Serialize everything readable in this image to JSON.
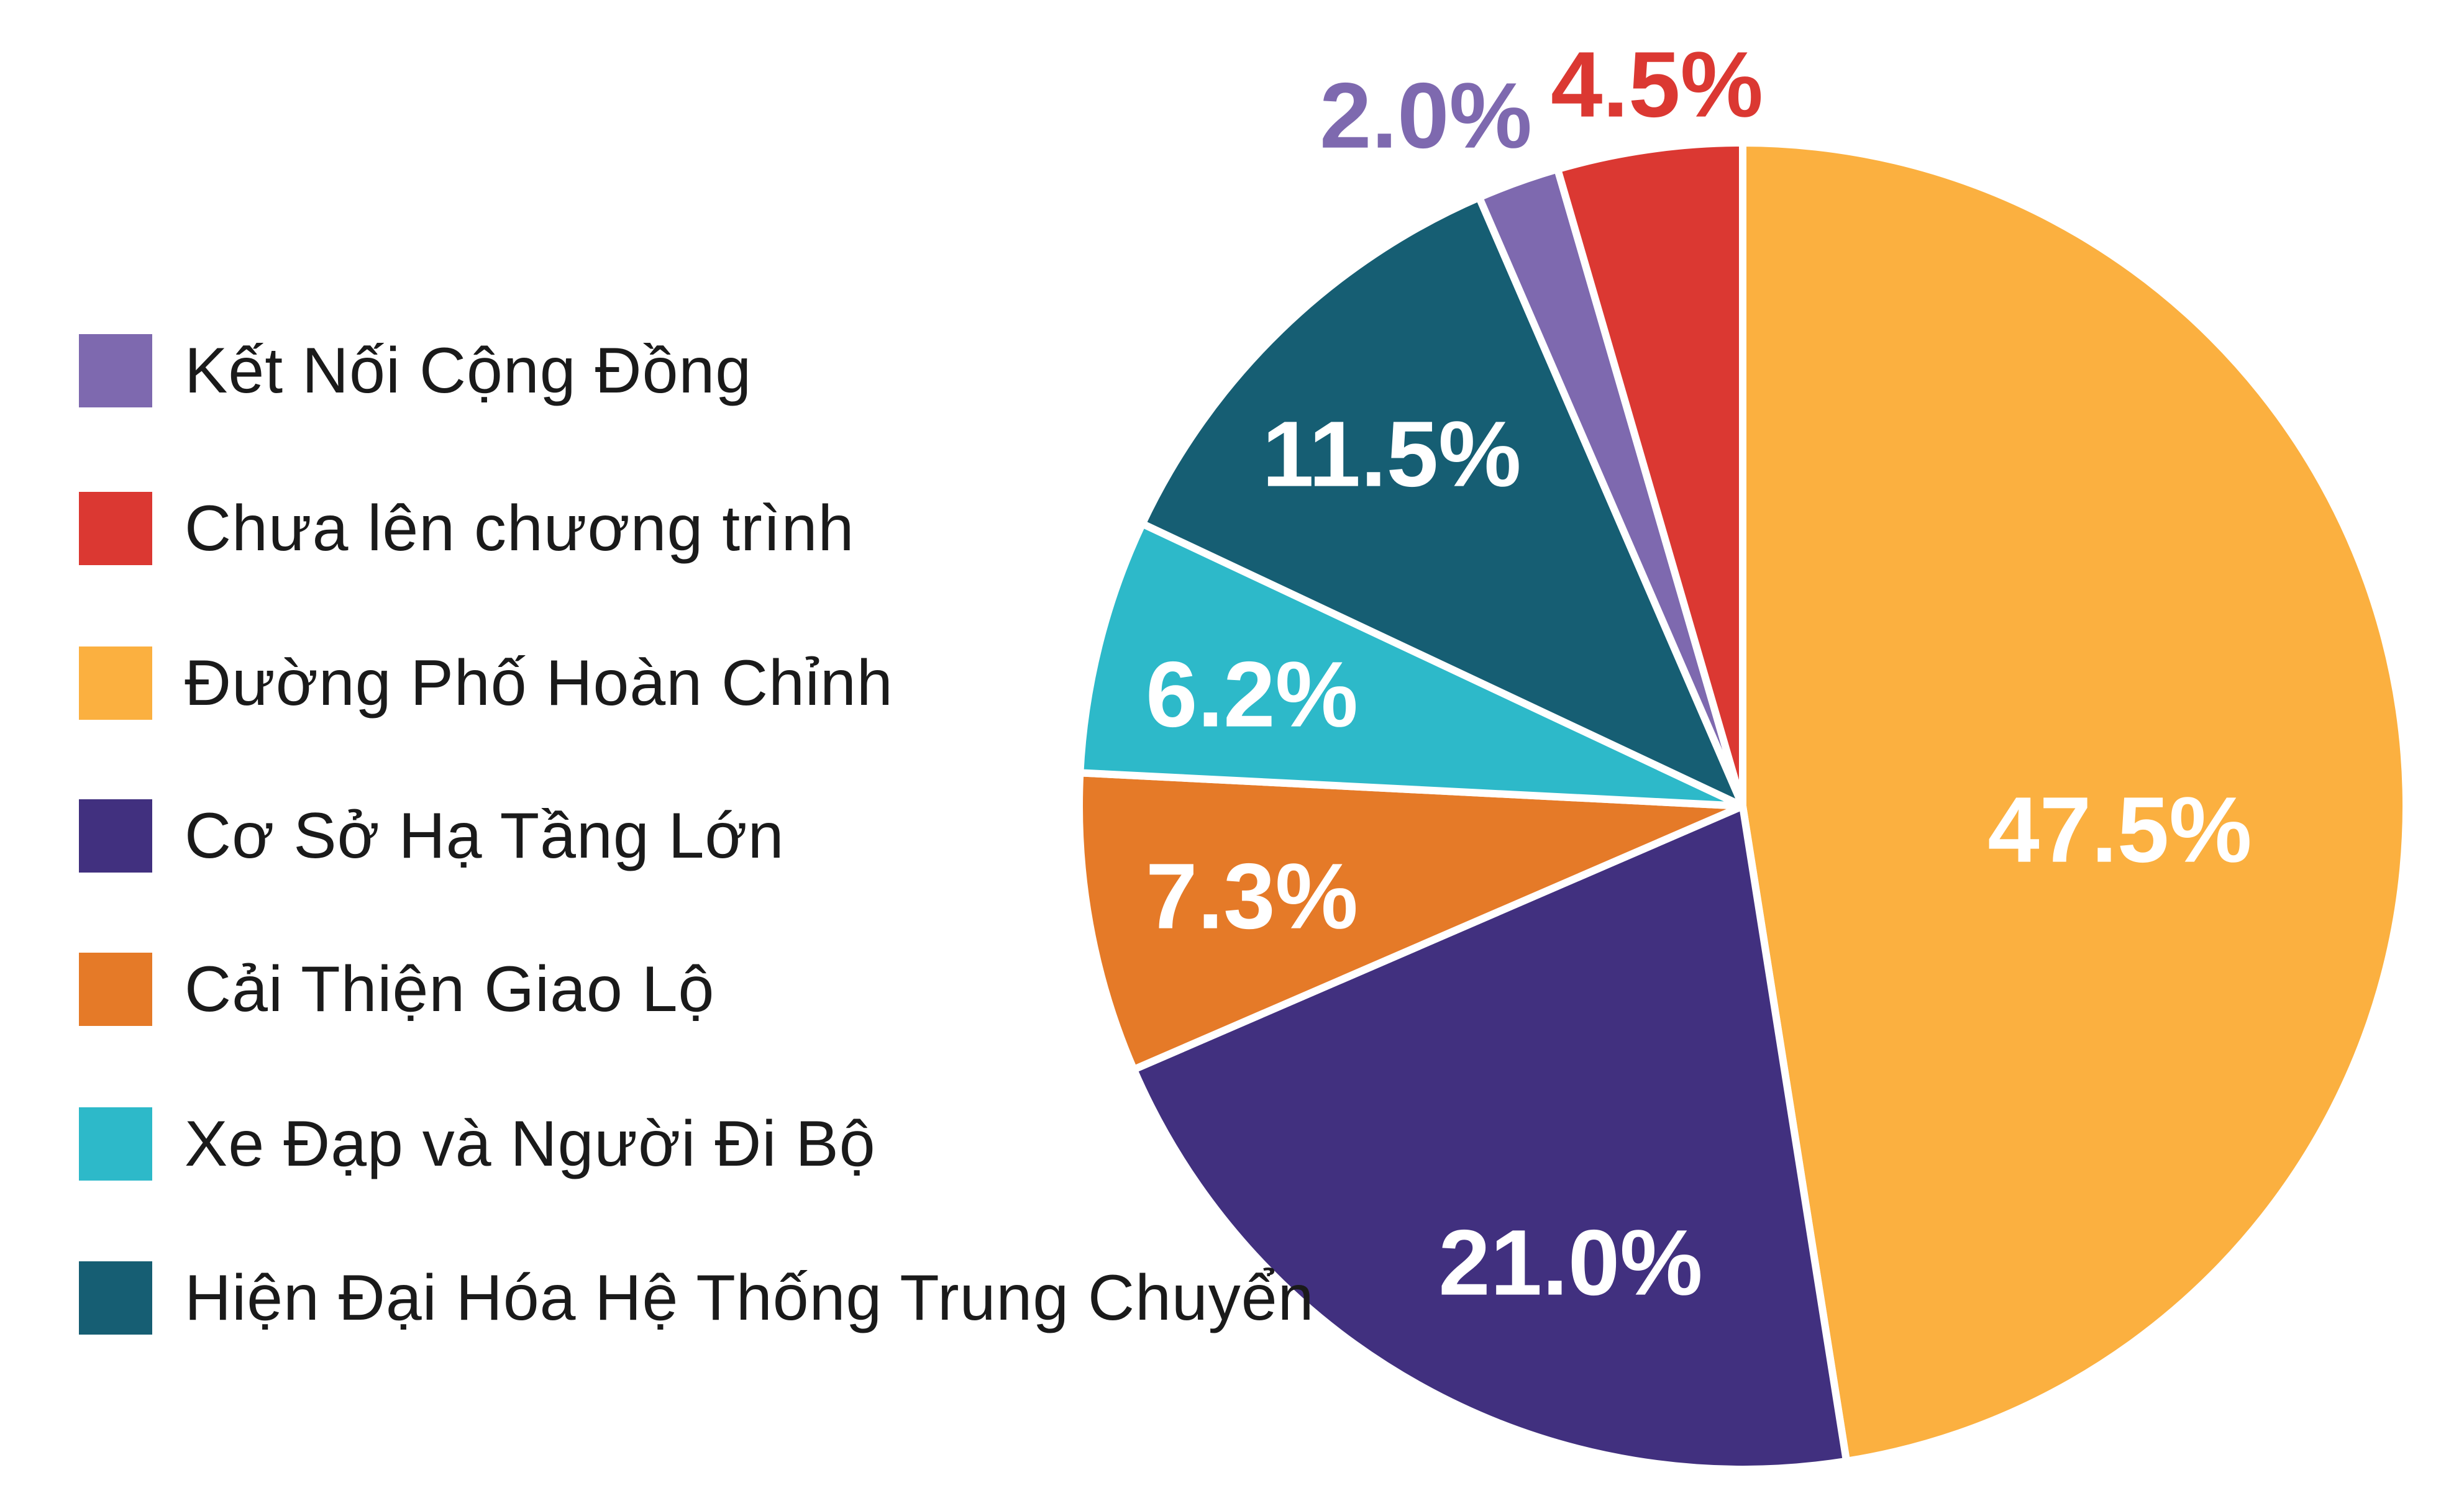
{
  "chart_data": {
    "type": "pie",
    "title": "",
    "start": "top, clockwise",
    "slices": [
      {
        "label": "Đường Phố Hoàn Chỉnh",
        "value": 47.5,
        "display": "47.5%",
        "color": "#FBB040"
      },
      {
        "label": "Cơ Sở Hạ Tầng Lớn",
        "value": 21.0,
        "display": "21.0%",
        "color": "#41307F"
      },
      {
        "label": "Cải Thiện Giao Lộ",
        "value": 7.3,
        "display": "7.3%",
        "color": "#E57A28"
      },
      {
        "label": "Xe Đạp và Người Đi Bộ",
        "value": 6.2,
        "display": "6.2%",
        "color": "#2DB9C9"
      },
      {
        "label": "Hiện Đại Hóa Hệ Thống Trung Chuyển",
        "value": 11.5,
        "display": "11.5%",
        "color": "#165E73"
      },
      {
        "label": "Kết Nối Cộng Đồng",
        "value": 2.0,
        "display": "2.0%",
        "color": "#7E69AF"
      },
      {
        "label": "Chưa lên chương trình",
        "value": 4.5,
        "display": "4.5%",
        "color": "#DB3832"
      }
    ],
    "legend": {
      "placement": "left",
      "entries": [
        {
          "label": "Kết Nối Cộng Đồng",
          "color": "#7E69AF"
        },
        {
          "label": "Chưa lên chương trình",
          "color": "#DB3832"
        },
        {
          "label": "Đường Phố Hoàn Chỉnh",
          "color": "#FBB040"
        },
        {
          "label": "Cơ Sở Hạ Tầng Lớn",
          "color": "#41307F"
        },
        {
          "label": "Cải Thiện Giao Lộ",
          "color": "#E57A28"
        },
        {
          "label": "Xe Đạp và Người Đi Bộ",
          "color": "#2DB9C9"
        },
        {
          "label": "Hiện Đại Hóa Hệ Thống Trung Chuyển",
          "color": "#165E73"
        }
      ]
    }
  }
}
